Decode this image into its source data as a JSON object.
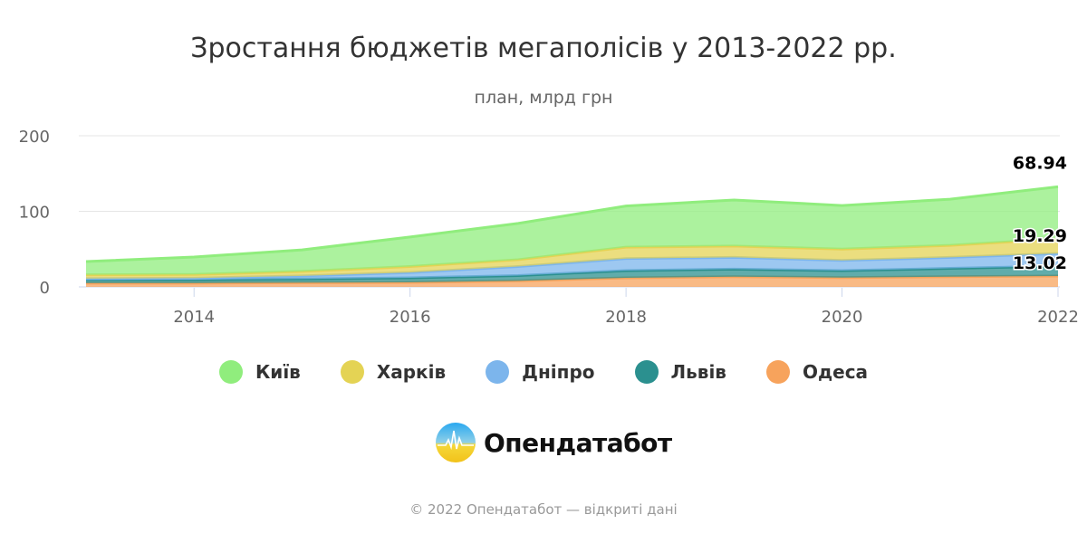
{
  "chart_data": {
    "type": "area",
    "stacked": true,
    "title": "Зростання бюджетів мегаполісів у 2013-2022 рр.",
    "subtitle": "план, млрд грн",
    "x": [
      2013,
      2014,
      2015,
      2016,
      2017,
      2018,
      2019,
      2020,
      2021,
      2022
    ],
    "x_ticks": [
      "2014",
      "2016",
      "2018",
      "2020",
      "2022"
    ],
    "y_ticks": [
      "0",
      "100",
      "200"
    ],
    "ylim": [
      0,
      200
    ],
    "grid": true,
    "legend_position": "bottom",
    "series": [
      {
        "name": "Київ",
        "color": "#90ed7d",
        "values": [
          17.5,
          23,
          28.5,
          39,
          48,
          54.5,
          61,
          57.7,
          61,
          68.94
        ],
        "label_last": "68.94"
      },
      {
        "name": "Харків",
        "color": "#e4d354",
        "values": [
          5,
          5,
          6,
          8,
          9,
          15,
          15,
          15,
          16,
          19.29
        ],
        "label_last": "19.29"
      },
      {
        "name": "Дніпро",
        "color": "#7cb5ec",
        "values": [
          1.5,
          2,
          4,
          7,
          12,
          16,
          15.5,
          13.5,
          14.5,
          16.8
        ]
      },
      {
        "name": "Львів",
        "color": "#2b908f",
        "values": [
          4.5,
          4.5,
          5,
          6,
          7,
          9.5,
          10,
          9.2,
          11,
          13.02
        ],
        "label_last": "13.02"
      },
      {
        "name": "Одеса",
        "color": "#f7a35c",
        "values": [
          5,
          5,
          5.5,
          6,
          8,
          12,
          13.5,
          12.3,
          13.5,
          14.4
        ]
      }
    ]
  },
  "logo": {
    "text": "Опендатабот"
  },
  "footer": "© 2022 Опендатабот — відкриті дані"
}
